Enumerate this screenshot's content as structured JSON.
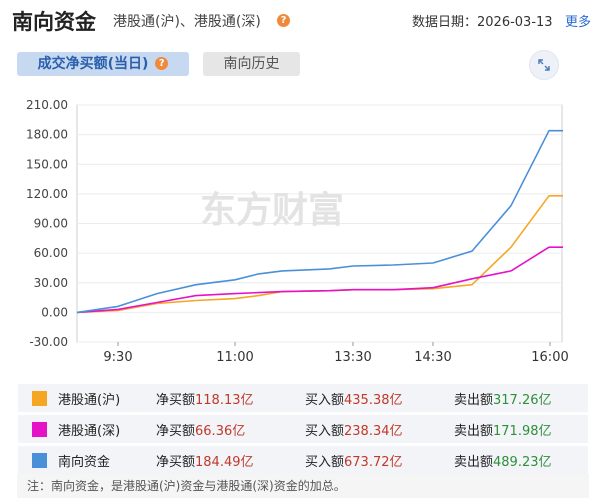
{
  "header": {
    "title": "南向资金",
    "subtitle": "港股通(沪)、港股通(深)",
    "date_label": "数据日期：2026-03-13",
    "more_label": "更多"
  },
  "tabs": {
    "active_label": "成交净买额(当日)",
    "inactive_label": "南向历史"
  },
  "watermark": "东方财富",
  "chart_data": {
    "type": "line",
    "xlabel": "",
    "ylabel": "",
    "ylim": [
      -30,
      210
    ],
    "y_ticks": [
      "210.00",
      "180.00",
      "150.00",
      "120.00",
      "90.00",
      "60.00",
      "30.00",
      "0.00",
      "-30.00"
    ],
    "x_ticks": [
      "9:30",
      "11:00",
      "13:30",
      "14:30",
      "16:00"
    ],
    "x": [
      "09:00",
      "09:30",
      "10:00",
      "10:30",
      "11:00",
      "11:30",
      "12:00",
      "13:00",
      "13:30",
      "14:00",
      "14:30",
      "15:00",
      "15:30",
      "15:50",
      "16:00"
    ],
    "series": [
      {
        "name": "港股通(沪)",
        "color": "#f5a623",
        "values": [
          0,
          2,
          9,
          12,
          14,
          17,
          21,
          22,
          23,
          23,
          24,
          28,
          66,
          118,
          118
        ]
      },
      {
        "name": "港股通(深)",
        "color": "#e512c8",
        "values": [
          0,
          3,
          10,
          17,
          19,
          20,
          21,
          22,
          23,
          23,
          25,
          34,
          42,
          66,
          66
        ]
      },
      {
        "name": "南向资金",
        "color": "#4a90d9",
        "values": [
          0,
          6,
          19,
          28,
          33,
          39,
          42,
          44,
          47,
          48,
          50,
          62,
          108,
          184,
          184
        ]
      }
    ]
  },
  "legend": [
    {
      "name": "港股通(沪)",
      "color": "#f5a623",
      "net_label": "净买额",
      "net": "118.13亿",
      "buy_label": "买入额",
      "buy": "435.38亿",
      "sell_label": "卖出额",
      "sell": "317.26亿"
    },
    {
      "name": "港股通(深)",
      "color": "#e512c8",
      "net_label": "净买额",
      "net": "66.36亿",
      "buy_label": "买入额",
      "buy": "238.34亿",
      "sell_label": "卖出额",
      "sell": "171.98亿"
    },
    {
      "name": "南向资金",
      "color": "#4a90d9",
      "net_label": "净买额",
      "net": "184.49亿",
      "buy_label": "买入额",
      "buy": "673.72亿",
      "sell_label": "卖出额",
      "sell": "489.23亿"
    }
  ],
  "note": "注：南向资金，是港股通(沪)资金与港股通(深)资金的加总。"
}
